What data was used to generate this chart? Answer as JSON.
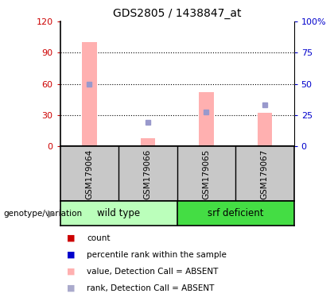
{
  "title": "GDS2805 / 1438847_at",
  "samples": [
    "GSM179064",
    "GSM179066",
    "GSM179065",
    "GSM179067"
  ],
  "ylim_left": [
    0,
    120
  ],
  "ylim_right": [
    0,
    100
  ],
  "yticks_left": [
    0,
    30,
    60,
    90,
    120
  ],
  "yticks_right": [
    0,
    25,
    50,
    75,
    100
  ],
  "ytick_labels_left": [
    "0",
    "30",
    "60",
    "90",
    "120"
  ],
  "ytick_labels_right": [
    "0",
    "25",
    "50",
    "75",
    "100%"
  ],
  "pink_bar_values": [
    100,
    8,
    52,
    32
  ],
  "blue_sq_values": [
    60,
    23,
    33,
    40
  ],
  "left_axis_color": "#CC0000",
  "right_axis_color": "#0000CC",
  "pink_color": "#FFB0B0",
  "blue_sq_color": "#9999CC",
  "legend_items": [
    {
      "color": "#CC0000",
      "label": "count"
    },
    {
      "color": "#0000CC",
      "label": "percentile rank within the sample"
    },
    {
      "color": "#FFB0B0",
      "label": "value, Detection Call = ABSENT"
    },
    {
      "color": "#AAAACC",
      "label": "rank, Detection Call = ABSENT"
    }
  ],
  "group_label": "genotype/variation",
  "group1_name": "wild type",
  "group2_name": "srf deficient",
  "group1_color": "#BBFFBB",
  "group2_color": "#44DD44",
  "sample_bg": "#C8C8C8"
}
